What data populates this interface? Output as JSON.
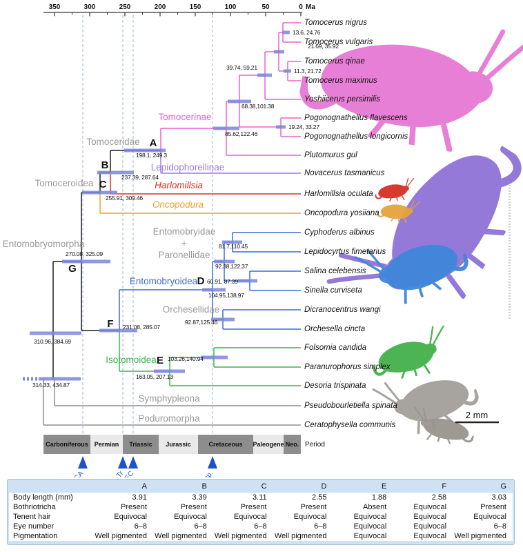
{
  "tree": {
    "axis": {
      "ticks": [
        "350",
        "300",
        "250",
        "200",
        "150",
        "100",
        "50",
        "0"
      ],
      "unit": "Ma"
    },
    "tips": [
      {
        "name": "Tomocerus nigrus"
      },
      {
        "name": "Tomocerus vulgaris"
      },
      {
        "name": "Tomocerus qinae"
      },
      {
        "name": "Tomocerus maximus"
      },
      {
        "name": "Yoshiicerus persimilis"
      },
      {
        "name": "Pogonognathellus flavescens"
      },
      {
        "name": "Pogonognathellus longicornis"
      },
      {
        "name": "Plutomurus gul"
      },
      {
        "name": "Novacerus tasmanicus"
      },
      {
        "name": "Harlomillsia oculata"
      },
      {
        "name": "Oncopodura yosiiana"
      },
      {
        "name": "Cyphoderus albinus"
      },
      {
        "name": "Lepidocyrtus fimetarius"
      },
      {
        "name": "Salina celebensis"
      },
      {
        "name": "Sinella curviseta"
      },
      {
        "name": "Dicranocentrus wangi"
      },
      {
        "name": "Orchesella cincta"
      },
      {
        "name": "Folsomia candida"
      },
      {
        "name": "Paranurophorus simplex"
      },
      {
        "name": "Desoria trispinata"
      },
      {
        "name": "Pseudobourletiella spinata"
      },
      {
        "name": "Ceratophysella communis"
      }
    ],
    "node_intervals": {
      "n_nigrus_vulgaris": "13.6, 24.76",
      "n_tomocerus": "21.69, 35.92",
      "n_qinae_maximus": "11.3, 21.72",
      "n_yoshiicerus": "39.74, 59.21",
      "n_tomocerinae_core": "68.38,101.38",
      "n_pogono": "19.24, 33.27",
      "n_tomocerinae": "85.62,122.46",
      "A": "198.1, 249.3",
      "B": "237.39, 287.64",
      "C": "255.91, 309.46",
      "G": "270.08, 325.09",
      "n_cypho_lepido": "81.7,110.45",
      "n_entomobryidae": "92.38,122.37",
      "D": "60.91, 87.39",
      "n_entomobryoidea": "104.95,138.97",
      "n_orchesellidae": "92.87,125.46",
      "F": "231.08, 285.07",
      "E": "103.26,140.94",
      "n_isotomoidea": "163.05, 207.13",
      "n_entsym": "310.96, 384.69",
      "root": "314.33, 434.87"
    },
    "node_letters": [
      "A",
      "B",
      "C",
      "D",
      "E",
      "F",
      "G"
    ],
    "clade_labels": {
      "tomocerinae": "Tomocerinae",
      "tomoceridae": "Tomoceridae",
      "lepidophorellinae": "Lepidophorellinae",
      "tomoceroidea": "Tomoceroidea",
      "harlomillsia": "Harlomillsia",
      "oncopodura": "Oncopodura",
      "entomobryidae": "Entomobryidae",
      "plus": "+",
      "paronellidae": "Paronellidae",
      "entomobryomorpha": "Entomobryomorpha",
      "entomobryoidea": "Entomobryoidea",
      "orchesellidae": "Orchesellidae",
      "isotomoidea": "Isotomoidea",
      "symphypleona": "Symphypleona",
      "poduromorpha": "Poduromorpha"
    },
    "scale_bar_label": "2 mm"
  },
  "geo": {
    "periods": [
      "Carboniferous",
      "Permian",
      "Triassic",
      "Jurassic",
      "Cretaceous",
      "Paleogene",
      "Neo."
    ],
    "axis_label": "Period",
    "events": [
      "CA",
      "P-Tr",
      "EC",
      "Asp."
    ]
  },
  "table": {
    "corner": "",
    "columns": [
      "A",
      "B",
      "C",
      "D",
      "E",
      "F",
      "G"
    ],
    "rows": [
      {
        "label": "Body length (mm)",
        "values": [
          "3.91",
          "3.39",
          "3.11",
          "2.55",
          "1.88",
          "2.58",
          "3.03"
        ]
      },
      {
        "label": "Bothriotricha",
        "values": [
          "Present",
          "Present",
          "Present",
          "Present",
          "Absent",
          "Equivocal",
          "Present"
        ]
      },
      {
        "label": "Tenent hair",
        "values": [
          "Equivocal",
          "Equivocal",
          "Equivocal",
          "Equivocal",
          "Equivocal",
          "Equivocal",
          "Equivocal"
        ]
      },
      {
        "label": "Eye number",
        "values": [
          "6–8",
          "6–8",
          "6–8",
          "6–8",
          "Equivocal",
          "Equivocal",
          "6–8"
        ]
      },
      {
        "label": "Pigmentation",
        "values": [
          "Well pigmented",
          "Well pigmented",
          "Well pigmented",
          "Well pigmented",
          "Equivocal",
          "Equivocal",
          "Well pigmented"
        ]
      }
    ]
  },
  "colors": {
    "pink": "#ee5fd2",
    "purple": "#9b7de0",
    "red": "#dd2f1e",
    "orange": "#f2a12e",
    "blue": "#3a6bd8",
    "green": "#3cb54a",
    "gray_branch": "#8f8f8f",
    "black": "#1c1c1c",
    "bar": "#7d85dd",
    "guide": "#9cb6d8",
    "event_blue": "#1d53c8",
    "clade_gray": "#9a9a9a",
    "ill_pink": "#e779d4",
    "ill_purple": "#8f72d8",
    "ill_blue": "#3f86d9",
    "ill_red": "#d53024",
    "ill_orange": "#e5a33e",
    "ill_green": "#44b04a",
    "ill_gray1": "#a3a09b",
    "ill_gray2": "#98958f"
  }
}
